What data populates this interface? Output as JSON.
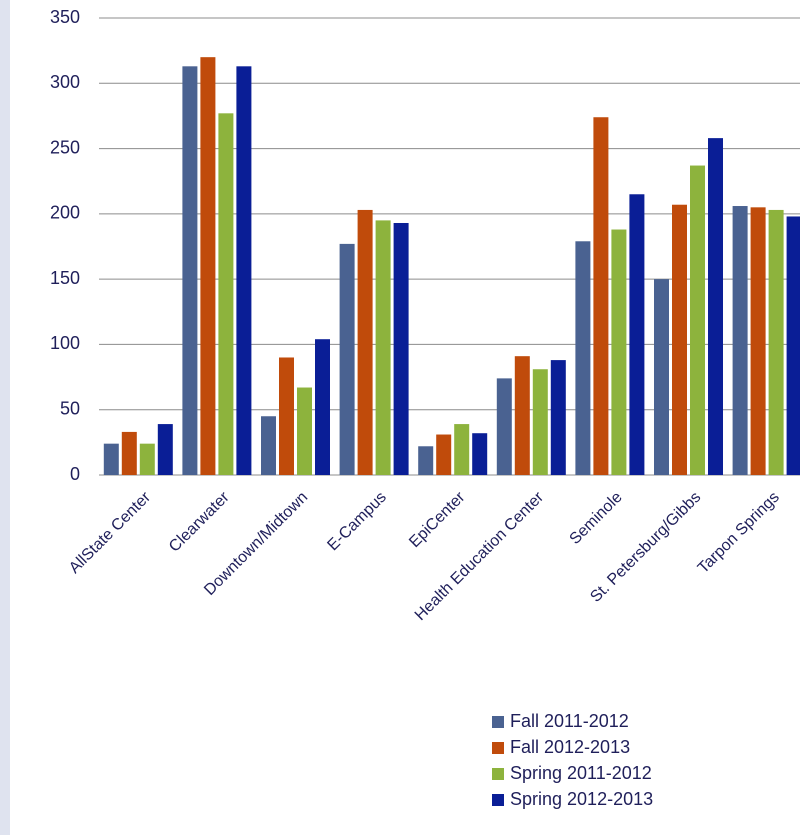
{
  "chart_data": {
    "type": "bar",
    "categories": [
      "AllState Center",
      "Clearwater",
      "Downtown/Midtown",
      "E-Campus",
      "EpiCenter",
      "Health Education Center",
      "Seminole",
      "St. Petersburg/Gibbs",
      "Tarpon Springs"
    ],
    "series": [
      {
        "name": "Fall 2011-2012",
        "color": "#4a6291",
        "values": [
          24,
          313,
          45,
          177,
          22,
          74,
          179,
          150,
          206
        ]
      },
      {
        "name": "Fall 2012-2013",
        "color": "#c04b0b",
        "values": [
          33,
          320,
          90,
          203,
          31,
          91,
          274,
          207,
          205
        ]
      },
      {
        "name": "Spring 2011-2012",
        "color": "#8db33d",
        "values": [
          24,
          277,
          67,
          195,
          39,
          81,
          188,
          237,
          203
        ]
      },
      {
        "name": "Spring 2012-2013",
        "color": "#0a1e96",
        "values": [
          39,
          313,
          104,
          193,
          32,
          88,
          215,
          258,
          198
        ]
      }
    ],
    "ylim": [
      0,
      350
    ],
    "yticks": [
      0,
      50,
      100,
      150,
      200,
      250,
      300,
      350
    ],
    "grid": true
  }
}
